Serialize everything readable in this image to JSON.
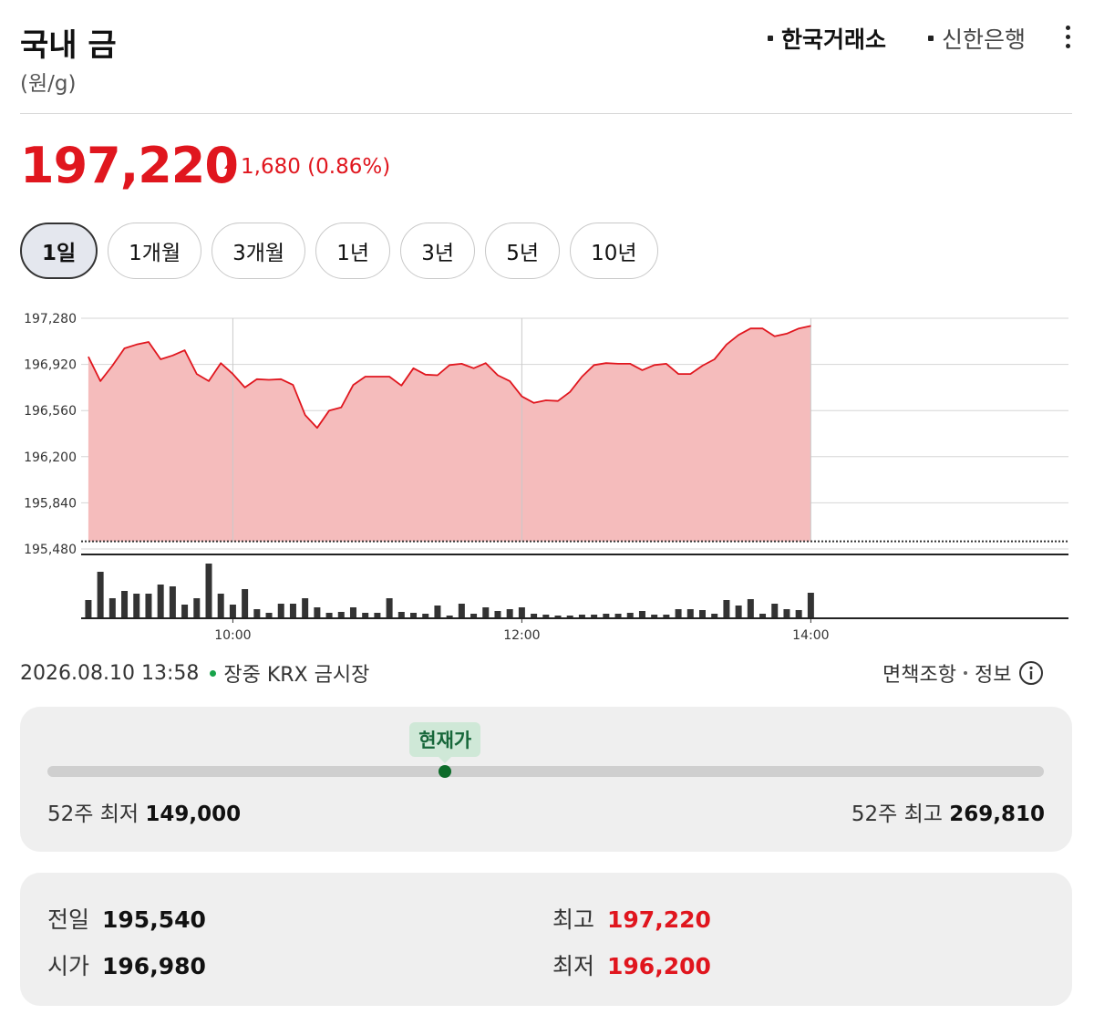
{
  "header": {
    "title": "국내 금",
    "unit": "(원/g)",
    "sources": [
      "한국거래소",
      "신한은행"
    ]
  },
  "price": {
    "value": 197220,
    "label": "197,220",
    "change": "1,680",
    "change_pct": "(0.86%)"
  },
  "tabs": [
    "1일",
    "1개월",
    "3개월",
    "1년",
    "3년",
    "5년",
    "10년"
  ],
  "chart_data": {
    "type": "area",
    "x": [
      "09:00",
      "09:05",
      "09:10",
      "09:15",
      "09:20",
      "09:25",
      "09:30",
      "09:35",
      "09:40",
      "09:45",
      "09:50",
      "09:55",
      "10:00",
      "10:05",
      "10:10",
      "10:15",
      "10:20",
      "10:25",
      "10:30",
      "10:35",
      "10:40",
      "10:45",
      "10:50",
      "10:55",
      "11:00",
      "11:05",
      "11:10",
      "11:15",
      "11:20",
      "11:25",
      "11:30",
      "11:35",
      "11:40",
      "11:45",
      "11:50",
      "11:55",
      "12:00",
      "12:05",
      "12:10",
      "12:15",
      "12:20",
      "12:25",
      "12:30",
      "12:35",
      "12:40",
      "12:45",
      "12:50",
      "12:55",
      "13:00",
      "13:05",
      "13:10",
      "13:15",
      "13:20",
      "13:25",
      "13:30",
      "13:35",
      "13:40",
      "13:45",
      "13:50",
      "13:55",
      "14:00"
    ],
    "values": [
      196980,
      196790,
      196910,
      197045,
      197075,
      197095,
      196960,
      196990,
      197030,
      196845,
      196790,
      196930,
      196845,
      196740,
      196805,
      196800,
      196805,
      196760,
      196525,
      196425,
      196560,
      196585,
      196760,
      196825,
      196825,
      196825,
      196755,
      196890,
      196840,
      196835,
      196915,
      196925,
      196890,
      196930,
      196835,
      196790,
      196670,
      196620,
      196640,
      196635,
      196705,
      196825,
      196915,
      196930,
      196925,
      196925,
      196875,
      196915,
      196925,
      196845,
      196845,
      196910,
      196960,
      197075,
      197150,
      197200,
      197200,
      197140,
      197160,
      197200,
      197220
    ],
    "color": "#e0161e",
    "fill_color": "#f5bcbc",
    "volume": {
      "values": [
        20,
        51,
        22,
        30,
        27,
        27,
        37,
        35,
        15,
        22,
        60,
        27,
        15,
        32,
        10,
        6,
        16,
        16,
        22,
        12,
        6,
        7,
        12,
        6,
        6,
        22,
        7,
        6,
        5,
        14,
        3,
        16,
        5,
        12,
        8,
        10,
        12,
        5,
        4,
        3,
        3,
        4,
        4,
        5,
        5,
        6,
        8,
        4,
        4,
        10,
        10,
        9,
        5,
        20,
        14,
        21,
        5,
        16,
        10,
        9,
        28
      ],
      "color": "#333333"
    },
    "reference_line": 195540,
    "xlim": [
      "08:57",
      "15:47"
    ],
    "xticks": [
      "10:00",
      "12:00",
      "14:00"
    ],
    "ylim": [
      195480,
      197280
    ],
    "yticks": [
      {
        "value": 195480,
        "label": "195,480"
      },
      {
        "value": 195840,
        "label": "195,840"
      },
      {
        "value": 196200,
        "label": "196,200"
      },
      {
        "value": 196560,
        "label": "196,560"
      },
      {
        "value": 196920,
        "label": "196,920"
      },
      {
        "value": 197280,
        "label": "197,280"
      }
    ],
    "grid": true
  },
  "status": {
    "datetime": "2026.08.10 13:58",
    "state": "장중",
    "market": "KRX 금시장",
    "links": [
      "면책조항",
      "정보"
    ]
  },
  "range_52w": {
    "marker_label": "현재가",
    "low_label": "52주 최저",
    "low": {
      "value": 149000,
      "label": "149,000"
    },
    "high_label": "52주 최고",
    "high": {
      "value": 269810,
      "label": "269,810"
    }
  },
  "stats": [
    {
      "label": "전일",
      "value": "195,540"
    },
    {
      "label": "시가",
      "value": "196,980"
    },
    {
      "label": "최고",
      "value": "197,220"
    },
    {
      "label": "최저",
      "value": "196,200"
    }
  ]
}
